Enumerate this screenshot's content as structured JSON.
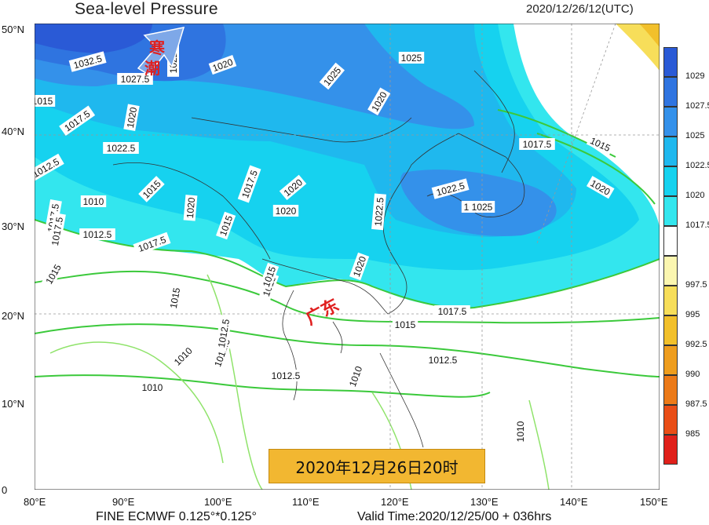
{
  "header": {
    "title": "Sea-level Pressure",
    "datetime": "2020/12/26/12(UTC)"
  },
  "footer": {
    "model": "FINE ECMWF 0.125°*0.125°",
    "valid_time": "Valid Time:2020/12/25/00 + 036hrs"
  },
  "banner": {
    "date_text": "2020年12月26日20时"
  },
  "annotations": {
    "cold_wave_1": "寒",
    "cold_wave_2": "潮",
    "province": "广东"
  },
  "axes": {
    "lat_ticks": [
      "50°N",
      "40°N",
      "30°N",
      "20°N",
      "10°N",
      "0"
    ],
    "lon_ticks": [
      "80°E",
      "90°E",
      "100°E",
      "110°E",
      "120°E",
      "130°E",
      "140°E",
      "150°E"
    ]
  },
  "colorbar": {
    "levels": [
      {
        "label": "1029",
        "color": "#2a5ad6"
      },
      {
        "label": "1027.5",
        "color": "#2f74e0"
      },
      {
        "label": "1025",
        "color": "#3491ea"
      },
      {
        "label": "1022.5",
        "color": "#1fb8ee"
      },
      {
        "label": "1020",
        "color": "#16d2ef"
      },
      {
        "label": "1017.5",
        "color": "#33e6ee"
      },
      {
        "label": "",
        "color": "#ffffff"
      },
      {
        "label": "997.5",
        "color": "#fbf6b0"
      },
      {
        "label": "995",
        "color": "#f7de5a"
      },
      {
        "label": "992.5",
        "color": "#f2c02b"
      },
      {
        "label": "990",
        "color": "#ee9d1e"
      },
      {
        "label": "987.5",
        "color": "#ec7a18"
      },
      {
        "label": "985",
        "color": "#e94d16"
      },
      {
        "label": "",
        "color": "#e0201a"
      }
    ]
  },
  "contour_labels": [
    "1032.5",
    "1027.5",
    "1022.5",
    "1020",
    "1025",
    "1017.5",
    "1020",
    "1015",
    "1022.5",
    "1012.5",
    "1015",
    "1017.5",
    "1020",
    "1010",
    "1015",
    "1020",
    "1017.5",
    "1012.5",
    "1017.5",
    "1015",
    "1020",
    "1020",
    "1022.5",
    "1025",
    "1017.5",
    "1015",
    "1025",
    "1022.5",
    "1020",
    "1025",
    "1020",
    "1017.5",
    "1015",
    "1012.5",
    "1015",
    "1010",
    "1012.5",
    "1010",
    "1010",
    "1012.5",
    "1010",
    "1015",
    "1012.5",
    "1017.5",
    "1015"
  ]
}
